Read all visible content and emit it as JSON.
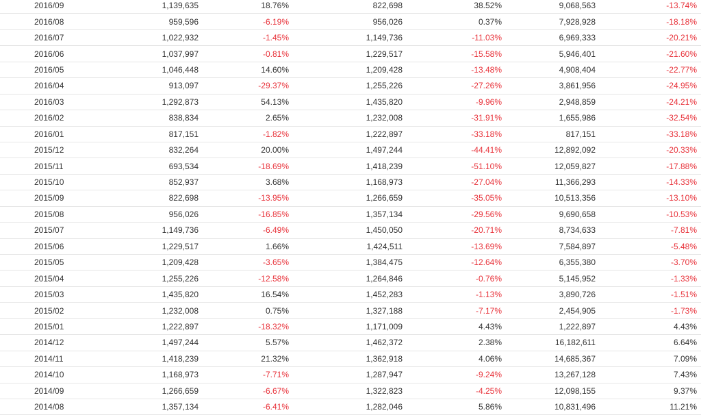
{
  "colors": {
    "negative": "#e8323a",
    "text": "#333333",
    "row_border": "#e6e6e6"
  },
  "table": {
    "rows": [
      [
        "2016/09",
        "1,139,635",
        "18.76%",
        "822,698",
        "38.52%",
        "9,068,563",
        "-13.74%"
      ],
      [
        "2016/08",
        "959,596",
        "-6.19%",
        "956,026",
        "0.37%",
        "7,928,928",
        "-18.18%"
      ],
      [
        "2016/07",
        "1,022,932",
        "-1.45%",
        "1,149,736",
        "-11.03%",
        "6,969,333",
        "-20.21%"
      ],
      [
        "2016/06",
        "1,037,997",
        "-0.81%",
        "1,229,517",
        "-15.58%",
        "5,946,401",
        "-21.60%"
      ],
      [
        "2016/05",
        "1,046,448",
        "14.60%",
        "1,209,428",
        "-13.48%",
        "4,908,404",
        "-22.77%"
      ],
      [
        "2016/04",
        "913,097",
        "-29.37%",
        "1,255,226",
        "-27.26%",
        "3,861,956",
        "-24.95%"
      ],
      [
        "2016/03",
        "1,292,873",
        "54.13%",
        "1,435,820",
        "-9.96%",
        "2,948,859",
        "-24.21%"
      ],
      [
        "2016/02",
        "838,834",
        "2.65%",
        "1,232,008",
        "-31.91%",
        "1,655,986",
        "-32.54%"
      ],
      [
        "2016/01",
        "817,151",
        "-1.82%",
        "1,222,897",
        "-33.18%",
        "817,151",
        "-33.18%"
      ],
      [
        "2015/12",
        "832,264",
        "20.00%",
        "1,497,244",
        "-44.41%",
        "12,892,092",
        "-20.33%"
      ],
      [
        "2015/11",
        "693,534",
        "-18.69%",
        "1,418,239",
        "-51.10%",
        "12,059,827",
        "-17.88%"
      ],
      [
        "2015/10",
        "852,937",
        "3.68%",
        "1,168,973",
        "-27.04%",
        "11,366,293",
        "-14.33%"
      ],
      [
        "2015/09",
        "822,698",
        "-13.95%",
        "1,266,659",
        "-35.05%",
        "10,513,356",
        "-13.10%"
      ],
      [
        "2015/08",
        "956,026",
        "-16.85%",
        "1,357,134",
        "-29.56%",
        "9,690,658",
        "-10.53%"
      ],
      [
        "2015/07",
        "1,149,736",
        "-6.49%",
        "1,450,050",
        "-20.71%",
        "8,734,633",
        "-7.81%"
      ],
      [
        "2015/06",
        "1,229,517",
        "1.66%",
        "1,424,511",
        "-13.69%",
        "7,584,897",
        "-5.48%"
      ],
      [
        "2015/05",
        "1,209,428",
        "-3.65%",
        "1,384,475",
        "-12.64%",
        "6,355,380",
        "-3.70%"
      ],
      [
        "2015/04",
        "1,255,226",
        "-12.58%",
        "1,264,846",
        "-0.76%",
        "5,145,952",
        "-1.33%"
      ],
      [
        "2015/03",
        "1,435,820",
        "16.54%",
        "1,452,283",
        "-1.13%",
        "3,890,726",
        "-1.51%"
      ],
      [
        "2015/02",
        "1,232,008",
        "0.75%",
        "1,327,188",
        "-7.17%",
        "2,454,905",
        "-1.73%"
      ],
      [
        "2015/01",
        "1,222,897",
        "-18.32%",
        "1,171,009",
        "4.43%",
        "1,222,897",
        "4.43%"
      ],
      [
        "2014/12",
        "1,497,244",
        "5.57%",
        "1,462,372",
        "2.38%",
        "16,182,611",
        "6.64%"
      ],
      [
        "2014/11",
        "1,418,239",
        "21.32%",
        "1,362,918",
        "4.06%",
        "14,685,367",
        "7.09%"
      ],
      [
        "2014/10",
        "1,168,973",
        "-7.71%",
        "1,287,947",
        "-9.24%",
        "13,267,128",
        "7.43%"
      ],
      [
        "2014/09",
        "1,266,659",
        "-6.67%",
        "1,322,823",
        "-4.25%",
        "12,098,155",
        "9.37%"
      ],
      [
        "2014/08",
        "1,357,134",
        "-6.41%",
        "1,282,046",
        "5.86%",
        "10,831,496",
        "11.21%"
      ]
    ]
  }
}
